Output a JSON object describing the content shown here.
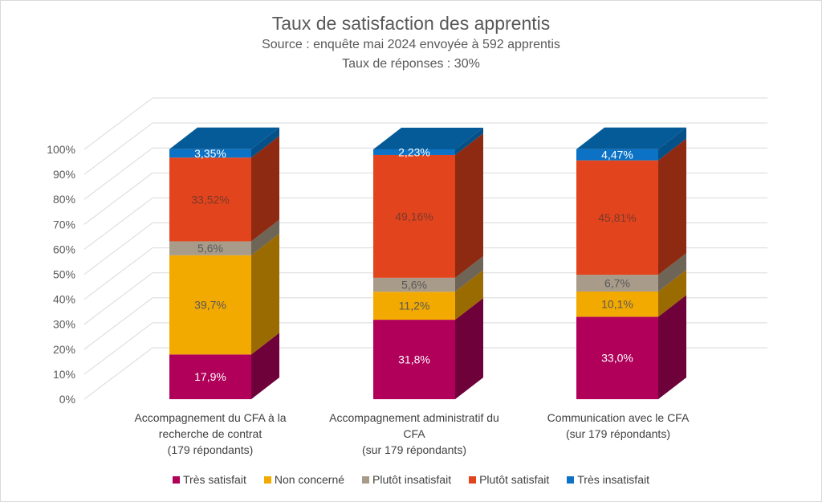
{
  "chart_data": {
    "type": "bar",
    "stacked": true,
    "three_d": true,
    "title": "Taux de satisfaction des apprentis",
    "subtitle_lines": [
      "Source : enquête mai 2024 envoyée à 592 apprentis",
      "Taux de réponses : 30%"
    ],
    "xlabel": "",
    "ylabel": "",
    "ylim": [
      0,
      100
    ],
    "yticks": [
      "0%",
      "10%",
      "20%",
      "30%",
      "40%",
      "50%",
      "60%",
      "70%",
      "80%",
      "90%",
      "100%"
    ],
    "grid": true,
    "legend_position": "bottom",
    "categories": [
      [
        "Accompagnement du CFA à la",
        "recherche de contrat",
        "(179 répondants)"
      ],
      [
        "Accompagnement administratif du",
        "CFA",
        "(sur 179 répondants)"
      ],
      [
        "Communication avec le CFA",
        "(sur 179 répondants)"
      ]
    ],
    "series": [
      {
        "name": "Très satisfait",
        "color": "#b0005a",
        "side": "#6e003a",
        "label_color": "#ffffff",
        "values": [
          17.9,
          31.8,
          33.0
        ],
        "labels": [
          "17,9%",
          "31,8%",
          "33,0%"
        ]
      },
      {
        "name": "Non concerné",
        "color": "#f2a900",
        "side": "#9a6b00",
        "label_color": "#595959",
        "values": [
          39.7,
          11.2,
          10.1
        ],
        "labels": [
          "39,7%",
          "11,2%",
          "10,1%"
        ]
      },
      {
        "name": "Plutôt insatisfait",
        "color": "#a89b89",
        "side": "#6e6557",
        "label_color": "#595959",
        "values": [
          5.6,
          5.6,
          6.7
        ],
        "labels": [
          "5,6%",
          "5,6%",
          "6,7%"
        ]
      },
      {
        "name": "Plutôt satisfait",
        "color": "#e2441d",
        "side": "#8f2a12",
        "label_color": "#7a3a2a",
        "values": [
          33.52,
          49.16,
          45.81
        ],
        "labels": [
          "33,52%",
          "49,16%",
          "45,81%"
        ]
      },
      {
        "name": "Très insatisfait",
        "color": "#0b72c6",
        "side": "#045088",
        "top": "#055b98",
        "label_color": "#ffffff",
        "values": [
          3.35,
          2.23,
          4.47
        ],
        "labels": [
          "3,35%",
          "2,23%",
          "4,47%"
        ]
      }
    ]
  }
}
